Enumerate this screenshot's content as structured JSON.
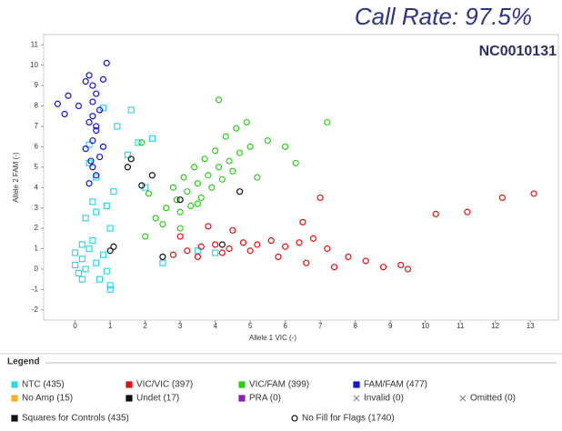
{
  "chart_data": {
    "type": "scatter",
    "title": "Call Rate: 97.5%",
    "subtitle": "NC0010131",
    "xlabel": "Allele 1 VIC (-)",
    "ylabel": "Allele 2 FAM (-)",
    "xlim": [
      -0.9,
      13.8
    ],
    "ylim": [
      -2.5,
      11.5
    ],
    "xticks": [
      0,
      1,
      2,
      3,
      4,
      5,
      6,
      7,
      8,
      9,
      10,
      11,
      12,
      13
    ],
    "yticks": [
      -2,
      -1,
      0,
      1,
      2,
      3,
      4,
      5,
      6,
      7,
      8,
      9,
      10,
      11
    ],
    "legend_title": "Legend",
    "series": [
      {
        "name": "NTC (435)",
        "color": "#33d6e6",
        "marker": "square",
        "x": [
          0,
          0.2,
          0.4,
          0.1,
          0.3,
          0.6,
          0.8,
          0.5,
          0.2,
          0.0,
          0.7,
          0.9,
          1.0,
          0.3,
          0.5,
          1.1,
          0.6,
          0.4,
          1.5,
          1.8,
          2.0,
          1.2,
          0.8,
          1.6,
          2.2,
          0.4,
          0.6,
          1.0,
          0.9,
          3.5,
          4.0,
          2.5,
          0.2,
          1.0
        ],
        "y": [
          0.2,
          0.5,
          1.0,
          -0.2,
          0.0,
          0.3,
          0.7,
          1.4,
          1.2,
          0.8,
          -0.5,
          -0.1,
          -1.0,
          2.5,
          3.3,
          3.8,
          4.5,
          5.2,
          5.6,
          6.2,
          4.0,
          7.0,
          7.9,
          7.8,
          6.4,
          6.1,
          2.8,
          2.0,
          3.1,
          0.9,
          0.8,
          0.3,
          -0.5,
          -0.8
        ]
      },
      {
        "name": "VIC/VIC (397)",
        "color": "#e01010",
        "marker": "circle",
        "x": [
          2.8,
          3.2,
          3.6,
          4.0,
          4.4,
          4.8,
          5.2,
          5.6,
          6.0,
          6.4,
          6.8,
          7.2,
          3.0,
          3.5,
          4.2,
          5.0,
          5.8,
          6.6,
          7.4,
          7.8,
          8.3,
          8.8,
          9.3,
          9.5,
          10.3,
          11.2,
          12.2,
          13.1,
          7.0,
          6.5,
          4.5,
          3.8
        ],
        "y": [
          0.7,
          0.9,
          1.1,
          1.2,
          1.0,
          1.3,
          1.2,
          1.4,
          1.1,
          1.3,
          1.5,
          1.0,
          1.6,
          0.6,
          0.8,
          0.9,
          0.6,
          0.3,
          0.1,
          0.6,
          0.4,
          0.1,
          0.2,
          0.0,
          2.7,
          2.8,
          3.5,
          3.7,
          3.5,
          2.3,
          1.9,
          2.1
        ]
      },
      {
        "name": "VIC/FAM (399)",
        "color": "#2ecc1a",
        "marker": "circle",
        "x": [
          2.3,
          2.6,
          2.9,
          3.2,
          3.5,
          3.8,
          4.1,
          4.4,
          4.7,
          5.0,
          3.0,
          3.3,
          3.6,
          3.9,
          4.2,
          4.5,
          2.0,
          2.5,
          2.8,
          3.1,
          3.4,
          3.7,
          4.0,
          4.3,
          4.6,
          4.9,
          5.5,
          6.0,
          6.3,
          7.2,
          4.1,
          3.0,
          1.9,
          2.1,
          5.2,
          3.5
        ],
        "y": [
          2.5,
          3.0,
          3.4,
          3.8,
          4.2,
          4.6,
          5.0,
          5.3,
          5.7,
          6.0,
          2.8,
          3.1,
          3.5,
          4.0,
          4.4,
          4.8,
          1.6,
          2.2,
          4.0,
          4.5,
          5.0,
          5.4,
          5.8,
          6.5,
          6.9,
          7.2,
          6.3,
          6.0,
          5.2,
          7.2,
          8.3,
          2.0,
          6.2,
          3.7,
          4.5,
          3.2
        ]
      },
      {
        "name": "FAM/FAM (477)",
        "color": "#1414c8",
        "marker": "circle",
        "x": [
          -0.5,
          -0.3,
          -0.2,
          0.1,
          0.3,
          0.4,
          0.5,
          0.6,
          0.5,
          0.7,
          0.8,
          0.4,
          0.6,
          0.5,
          0.3,
          0.7,
          0.5,
          0.6,
          0.4,
          0.8,
          0.5,
          0.6,
          0.9,
          0.45
        ],
        "y": [
          8.1,
          7.6,
          8.5,
          8.0,
          9.2,
          9.5,
          9.0,
          8.6,
          8.2,
          7.8,
          9.3,
          7.2,
          6.8,
          6.3,
          5.9,
          5.5,
          5.0,
          4.6,
          4.2,
          6.0,
          7.5,
          7.0,
          10.1,
          5.3
        ]
      },
      {
        "name": "No Amp (15)",
        "color": "#f0b020",
        "marker": "circle",
        "x": [],
        "y": []
      },
      {
        "name": "Undet (17)",
        "color": "#111111",
        "marker": "circle",
        "x": [
          1.0,
          1.1,
          1.6,
          2.2,
          3.0,
          4.7,
          1.5,
          4.2,
          2.5,
          1.9
        ],
        "y": [
          0.9,
          1.1,
          5.4,
          4.6,
          3.4,
          3.8,
          5.0,
          1.2,
          0.6,
          4.1
        ]
      },
      {
        "name": "PRA (0)",
        "color": "#8a20b0",
        "marker": "circle",
        "x": [],
        "y": []
      },
      {
        "name": "Invalid (0)",
        "color": "#888888",
        "marker": "cross",
        "x": [],
        "y": []
      },
      {
        "name": "Omitted (0)",
        "color": "#888888",
        "marker": "cross",
        "x": [],
        "y": []
      }
    ],
    "legend_notes": [
      "Squares for Controls (435)",
      "No Fill for Flags (1740)"
    ]
  }
}
